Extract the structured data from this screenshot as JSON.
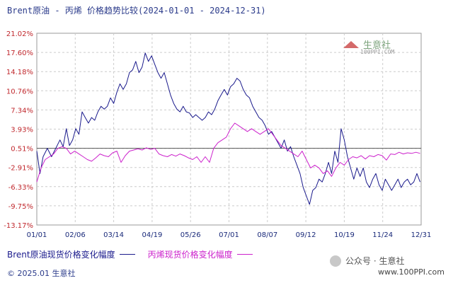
{
  "title": "Brent原油 - 丙烯 价格趋势比较(2024-01-01 - 2024-12-31)",
  "legend": [
    {
      "label": "Brent原油现货价格变化幅度",
      "color": "#1a1a8c"
    },
    {
      "label": "丙烯现货价格变化幅度",
      "color": "#cc22cc"
    }
  ],
  "footer": {
    "copyright": "© 2025.01 生意社",
    "watermark": "公众号 · 生意社",
    "site": "www.100PPI.com"
  },
  "logo": {
    "name": "生意社",
    "sub": "100PPI.COM"
  },
  "chart_data": {
    "type": "line",
    "title": "Brent原油 - 丙烯 价格趋势比较(2024-01-01 - 2024-12-31)",
    "xlabel": "",
    "ylabel": "",
    "x_ticks": [
      "01/01",
      "02/06",
      "03/14",
      "04/19",
      "05/26",
      "07/01",
      "08/07",
      "09/12",
      "10/19",
      "11/24",
      "12/31"
    ],
    "y_ticks": [
      "21.02%",
      "17.60%",
      "14.18%",
      "10.76%",
      "7.34%",
      "3.93%",
      "0.51%",
      "-2.91%",
      "-6.33%",
      "-9.75%",
      "-13.17%"
    ],
    "ylim": [
      -13.17,
      21.02
    ],
    "xlim": [
      0,
      365
    ],
    "grid": true,
    "reference_line": 0.51,
    "series": [
      {
        "name": "Brent原油现货价格变化幅度",
        "color": "#1a1a8c",
        "points": [
          [
            0,
            0
          ],
          [
            3,
            -4
          ],
          [
            6,
            -1
          ],
          [
            10,
            0.5
          ],
          [
            14,
            -1
          ],
          [
            18,
            0.5
          ],
          [
            22,
            2
          ],
          [
            25,
            0.8
          ],
          [
            28,
            4
          ],
          [
            31,
            1
          ],
          [
            34,
            2
          ],
          [
            37,
            4
          ],
          [
            40,
            3
          ],
          [
            43,
            7
          ],
          [
            46,
            6
          ],
          [
            49,
            5
          ],
          [
            52,
            6
          ],
          [
            55,
            5.5
          ],
          [
            58,
            7
          ],
          [
            61,
            8
          ],
          [
            64,
            7.5
          ],
          [
            67,
            8
          ],
          [
            70,
            9.5
          ],
          [
            73,
            8.5
          ],
          [
            76,
            10.5
          ],
          [
            79,
            12
          ],
          [
            82,
            11
          ],
          [
            85,
            12
          ],
          [
            88,
            14
          ],
          [
            91,
            14.5
          ],
          [
            94,
            16
          ],
          [
            97,
            14
          ],
          [
            100,
            15
          ],
          [
            103,
            17.5
          ],
          [
            106,
            16
          ],
          [
            109,
            17
          ],
          [
            112,
            15.5
          ],
          [
            115,
            14
          ],
          [
            118,
            13
          ],
          [
            121,
            14
          ],
          [
            124,
            12
          ],
          [
            127,
            10
          ],
          [
            130,
            8.5
          ],
          [
            133,
            7.5
          ],
          [
            136,
            7
          ],
          [
            139,
            8
          ],
          [
            142,
            7
          ],
          [
            145,
            6.8
          ],
          [
            148,
            6
          ],
          [
            151,
            6.5
          ],
          [
            154,
            6
          ],
          [
            157,
            5.5
          ],
          [
            160,
            6
          ],
          [
            163,
            7
          ],
          [
            166,
            6.5
          ],
          [
            169,
            7.5
          ],
          [
            172,
            9
          ],
          [
            175,
            10
          ],
          [
            178,
            11
          ],
          [
            181,
            10
          ],
          [
            184,
            11.5
          ],
          [
            187,
            12
          ],
          [
            190,
            13
          ],
          [
            193,
            12.5
          ],
          [
            196,
            11
          ],
          [
            199,
            10
          ],
          [
            202,
            9.5
          ],
          [
            205,
            8
          ],
          [
            208,
            7
          ],
          [
            211,
            6
          ],
          [
            214,
            5.5
          ],
          [
            217,
            4.5
          ],
          [
            220,
            3
          ],
          [
            223,
            3.5
          ],
          [
            226,
            2.5
          ],
          [
            229,
            1.5
          ],
          [
            232,
            0.5
          ],
          [
            235,
            2
          ],
          [
            238,
            0
          ],
          [
            241,
            0.8
          ],
          [
            244,
            -1
          ],
          [
            247,
            -2.5
          ],
          [
            250,
            -4
          ],
          [
            253,
            -6.5
          ],
          [
            256,
            -8
          ],
          [
            259,
            -9.5
          ],
          [
            262,
            -7
          ],
          [
            265,
            -6.5
          ],
          [
            268,
            -5
          ],
          [
            271,
            -5.5
          ],
          [
            274,
            -4
          ],
          [
            277,
            -2
          ],
          [
            280,
            -4
          ],
          [
            283,
            0
          ],
          [
            286,
            -2
          ],
          [
            289,
            4
          ],
          [
            292,
            2
          ],
          [
            295,
            -1
          ],
          [
            298,
            -3
          ],
          [
            301,
            -5
          ],
          [
            304,
            -3
          ],
          [
            307,
            -4.5
          ],
          [
            310,
            -3
          ],
          [
            313,
            -5.5
          ],
          [
            316,
            -6.5
          ],
          [
            319,
            -5
          ],
          [
            322,
            -4
          ],
          [
            325,
            -6
          ],
          [
            328,
            -7
          ],
          [
            331,
            -5
          ],
          [
            334,
            -6
          ],
          [
            337,
            -7
          ],
          [
            340,
            -6
          ],
          [
            343,
            -5
          ],
          [
            346,
            -6.5
          ],
          [
            349,
            -5.5
          ],
          [
            352,
            -5
          ],
          [
            355,
            -6
          ],
          [
            358,
            -5.5
          ],
          [
            361,
            -4
          ],
          [
            364,
            -5.5
          ]
        ]
      },
      {
        "name": "丙烯现货价格变化幅度",
        "color": "#cc22cc",
        "points": [
          [
            0,
            -5.5
          ],
          [
            4,
            -3
          ],
          [
            8,
            -1.5
          ],
          [
            12,
            -1
          ],
          [
            16,
            -0.5
          ],
          [
            20,
            0.5
          ],
          [
            24,
            0.8
          ],
          [
            28,
            0.5
          ],
          [
            32,
            -0.5
          ],
          [
            36,
            0
          ],
          [
            40,
            -0.5
          ],
          [
            44,
            -1
          ],
          [
            48,
            -1.5
          ],
          [
            52,
            -1.8
          ],
          [
            56,
            -1.2
          ],
          [
            60,
            -0.5
          ],
          [
            64,
            -0.8
          ],
          [
            68,
            -1
          ],
          [
            72,
            -0.3
          ],
          [
            76,
            0
          ],
          [
            80,
            -2
          ],
          [
            84,
            -0.8
          ],
          [
            88,
            0
          ],
          [
            92,
            0.2
          ],
          [
            96,
            0.4
          ],
          [
            100,
            0.2
          ],
          [
            104,
            0.6
          ],
          [
            108,
            0.3
          ],
          [
            112,
            0.5
          ],
          [
            116,
            -0.5
          ],
          [
            120,
            -0.8
          ],
          [
            124,
            -1
          ],
          [
            128,
            -0.6
          ],
          [
            132,
            -0.9
          ],
          [
            136,
            -0.5
          ],
          [
            140,
            -0.8
          ],
          [
            144,
            -1.2
          ],
          [
            148,
            -1.5
          ],
          [
            152,
            -1
          ],
          [
            156,
            -2
          ],
          [
            160,
            -1
          ],
          [
            164,
            -2
          ],
          [
            168,
            0.5
          ],
          [
            172,
            1.5
          ],
          [
            176,
            2
          ],
          [
            180,
            2.5
          ],
          [
            184,
            4
          ],
          [
            188,
            5
          ],
          [
            192,
            4.5
          ],
          [
            196,
            4
          ],
          [
            200,
            3.5
          ],
          [
            204,
            4
          ],
          [
            208,
            3.5
          ],
          [
            212,
            3
          ],
          [
            216,
            3.5
          ],
          [
            220,
            4
          ],
          [
            224,
            3
          ],
          [
            228,
            2
          ],
          [
            232,
            1
          ],
          [
            236,
            0.5
          ],
          [
            240,
            0
          ],
          [
            244,
            -0.5
          ],
          [
            248,
            -1
          ],
          [
            252,
            0
          ],
          [
            256,
            -1.5
          ],
          [
            260,
            -3
          ],
          [
            264,
            -2.5
          ],
          [
            268,
            -3
          ],
          [
            272,
            -4
          ],
          [
            276,
            -3.5
          ],
          [
            280,
            -4.5
          ],
          [
            284,
            -3
          ],
          [
            288,
            -2
          ],
          [
            292,
            -2.5
          ],
          [
            296,
            -1.5
          ],
          [
            300,
            -1
          ],
          [
            304,
            -1.2
          ],
          [
            308,
            -0.8
          ],
          [
            312,
            -1.4
          ],
          [
            316,
            -0.8
          ],
          [
            320,
            -1
          ],
          [
            324,
            -0.6
          ],
          [
            328,
            -0.8
          ],
          [
            332,
            -1.6
          ],
          [
            336,
            -0.5
          ],
          [
            340,
            -0.6
          ],
          [
            344,
            -0.2
          ],
          [
            348,
            -0.5
          ],
          [
            352,
            -0.3
          ],
          [
            356,
            -0.4
          ],
          [
            360,
            -0.2
          ],
          [
            364,
            -0.4
          ]
        ]
      }
    ]
  }
}
